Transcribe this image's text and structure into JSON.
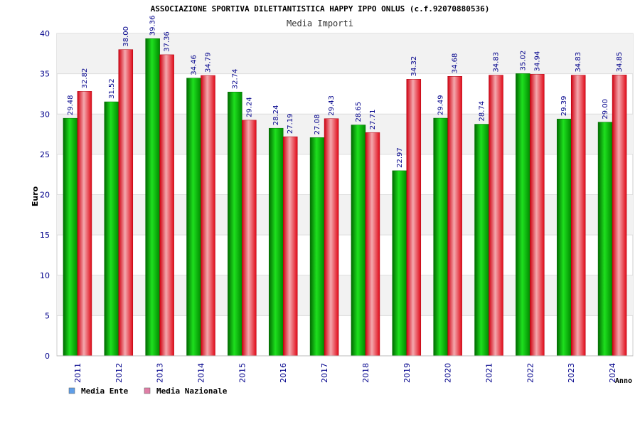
{
  "chart_data": {
    "type": "bar",
    "title": "ASSOCIAZIONE SPORTIVA DILETTANTISTICA HAPPY IPPO ONLUS (c.f.92070880536)",
    "subtitle": "Media Importi",
    "xlabel": "Anno",
    "ylabel": "Euro",
    "ylim": [
      0,
      40
    ],
    "yticks": [
      0,
      5,
      10,
      15,
      20,
      25,
      30,
      35,
      40
    ],
    "categories": [
      "2011",
      "2012",
      "2013",
      "2014",
      "2015",
      "2016",
      "2017",
      "2018",
      "2019",
      "2020",
      "2021",
      "2022",
      "2023",
      "2024"
    ],
    "series": [
      {
        "name": "Media Ente",
        "color": "#00b400",
        "values": [
          29.48,
          31.52,
          39.36,
          34.46,
          32.74,
          28.24,
          27.08,
          28.65,
          22.97,
          29.49,
          28.74,
          35.02,
          29.39,
          29.0
        ],
        "labels": [
          "29.48",
          "31.52",
          "39.36",
          "34.46",
          "32.74",
          "28.24",
          "27.08",
          "28.65",
          "22.97",
          "29.49",
          "28.74",
          "35.02",
          "29.39",
          "29.00"
        ]
      },
      {
        "name": "Media Nazionale",
        "color": "#e8202a",
        "values": [
          32.82,
          38.0,
          37.36,
          34.79,
          29.24,
          27.19,
          29.43,
          27.71,
          34.32,
          34.68,
          34.83,
          34.94,
          34.83,
          34.85
        ],
        "labels": [
          "32.82",
          "38.00",
          "37.36",
          "34.79",
          "29.24",
          "27.19",
          "29.43",
          "27.71",
          "34.32",
          "34.68",
          "34.83",
          "34.94",
          "34.83",
          "34.85"
        ]
      }
    ],
    "legend": [
      {
        "label": "Media Ente",
        "color": "#5f9ee8"
      },
      {
        "label": "Media Nazionale",
        "color": "#e07ea6"
      }
    ],
    "grid": true,
    "legend_position": "bottom-left"
  }
}
